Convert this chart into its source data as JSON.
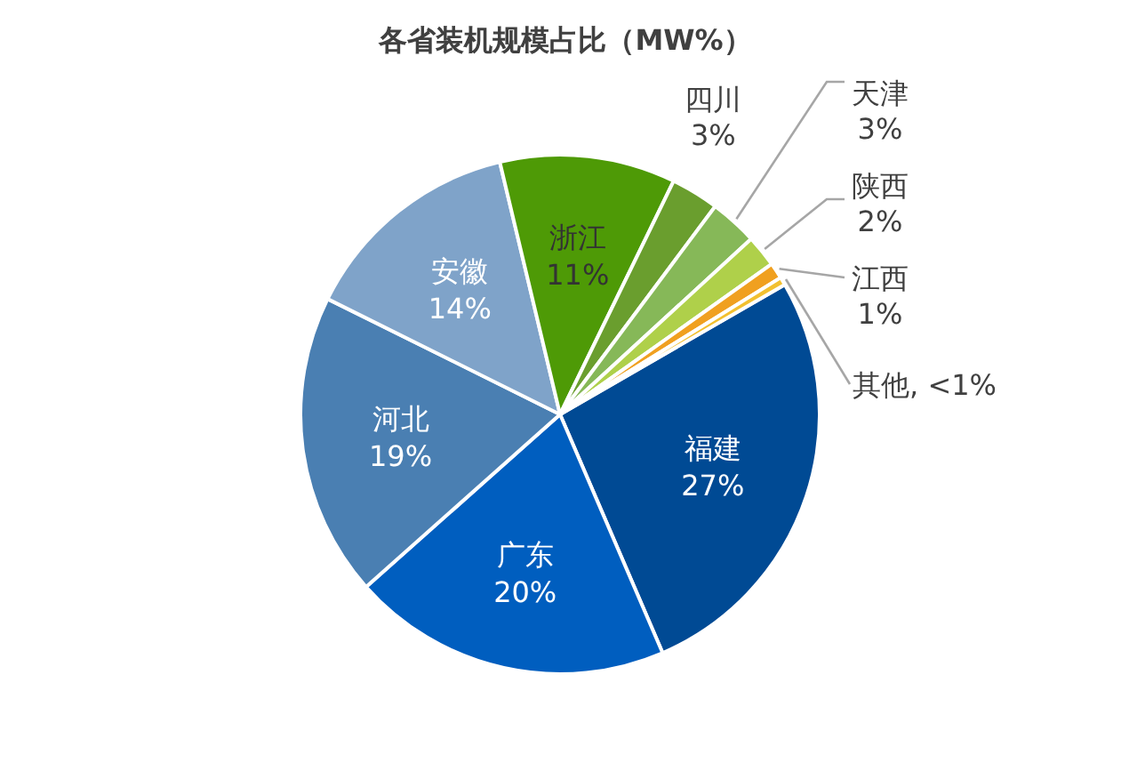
{
  "chart_data": {
    "type": "pie",
    "title": "各省装机规模占比（MW%）",
    "categories": [
      "福建",
      "广东",
      "河北",
      "安徽",
      "浙江",
      "四川",
      "天津",
      "陕西",
      "江西",
      "其他"
    ],
    "values": [
      27,
      20,
      19,
      14,
      11,
      3,
      3,
      2,
      1,
      0.5
    ],
    "value_labels": [
      "27%",
      "20%",
      "19%",
      "14%",
      "11%",
      "3%",
      "3%",
      "2%",
      "1%",
      "<1%"
    ],
    "colors": [
      "#004a94",
      "#005ebf",
      "#4a7fb2",
      "#7fa3c9",
      "#4e9a06",
      "#6a9e2e",
      "#86b858",
      "#afd04a",
      "#f0a020",
      "#f2c030"
    ]
  }
}
